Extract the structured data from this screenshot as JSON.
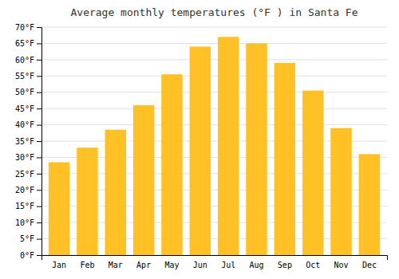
{
  "chart_data": {
    "type": "bar",
    "title": "Average monthly temperatures (°F ) in Santa Fe",
    "categories": [
      "Jan",
      "Feb",
      "Mar",
      "Apr",
      "May",
      "Jun",
      "Jul",
      "Aug",
      "Sep",
      "Oct",
      "Nov",
      "Dec"
    ],
    "values": [
      28.5,
      33.0,
      38.5,
      46.0,
      55.5,
      64.0,
      67.0,
      65.0,
      59.0,
      50.5,
      39.0,
      31.0
    ],
    "color": "#FFC125",
    "ylim": [
      0,
      70
    ],
    "yticks": [
      {
        "value": 0,
        "label": "0°F"
      },
      {
        "value": 5,
        "label": "5°F"
      },
      {
        "value": 10,
        "label": "10°F"
      },
      {
        "value": 15,
        "label": "15°F"
      },
      {
        "value": 20,
        "label": "20°F"
      },
      {
        "value": 25,
        "label": "25°F"
      },
      {
        "value": 30,
        "label": "30°F"
      },
      {
        "value": 35,
        "label": "35°F"
      },
      {
        "value": 40,
        "label": "40°F"
      },
      {
        "value": 45,
        "label": "45°F"
      },
      {
        "value": 50,
        "label": "50°F"
      },
      {
        "value": 55,
        "label": "55°F"
      },
      {
        "value": 60,
        "label": "60°F"
      },
      {
        "value": 65,
        "label": "65°F"
      },
      {
        "value": 70,
        "label": "70°F"
      }
    ],
    "grid": true
  }
}
